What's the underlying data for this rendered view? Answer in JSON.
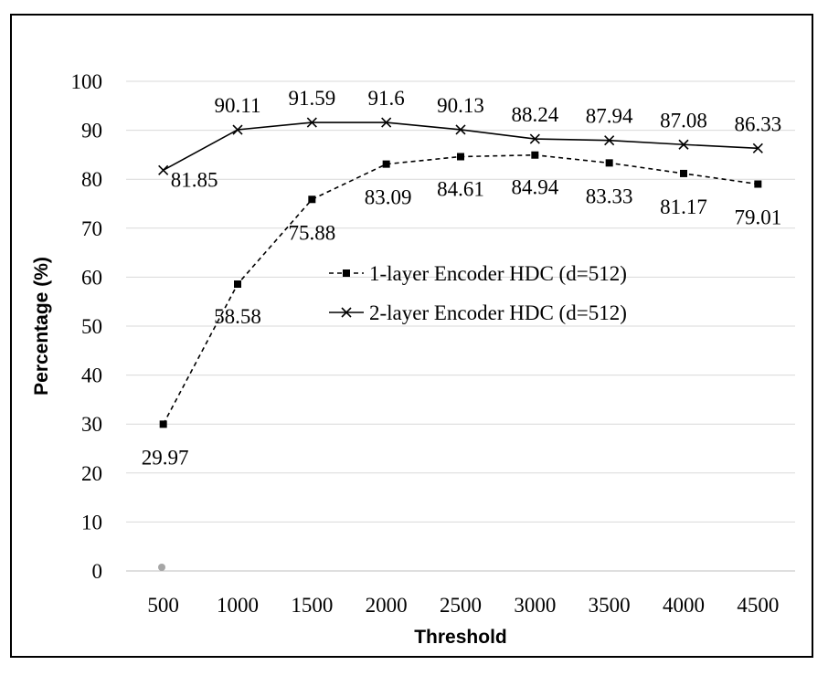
{
  "chart_data": {
    "type": "line",
    "title": "",
    "xlabel": "Threshold",
    "ylabel": "Percentage (%)",
    "categories": [
      "500",
      "1000",
      "1500",
      "2000",
      "2500",
      "3000",
      "3500",
      "4000",
      "4500"
    ],
    "ylim": [
      0,
      100
    ],
    "yticks": [
      "0",
      "10",
      "20",
      "30",
      "40",
      "50",
      "60",
      "70",
      "80",
      "90",
      "100"
    ],
    "grid": true,
    "legend_position": "center-right",
    "series": [
      {
        "name": "1-layer Encoder HDC (d=512)",
        "style": "dashed",
        "marker": "square",
        "color": "#000000",
        "values": [
          29.97,
          58.58,
          75.88,
          83.09,
          84.61,
          84.94,
          83.33,
          81.17,
          79.01
        ],
        "labels": [
          "29.97",
          "58.58",
          "75.88",
          "83.09",
          "84.61",
          "84.94",
          "83.33",
          "81.17",
          "79.01"
        ]
      },
      {
        "name": "2-layer Encoder HDC (d=512)",
        "style": "solid",
        "marker": "x",
        "color": "#000000",
        "values": [
          81.85,
          90.11,
          91.59,
          91.6,
          90.13,
          88.24,
          87.94,
          87.08,
          86.33
        ],
        "labels": [
          "81.85",
          "90.11",
          "91.59",
          "91.6",
          "90.13",
          "88.24",
          "87.94",
          "87.08",
          "86.33"
        ]
      }
    ]
  },
  "colors": {
    "grid": "#d9d9d9",
    "stray_dot": "#a6a6a6"
  }
}
